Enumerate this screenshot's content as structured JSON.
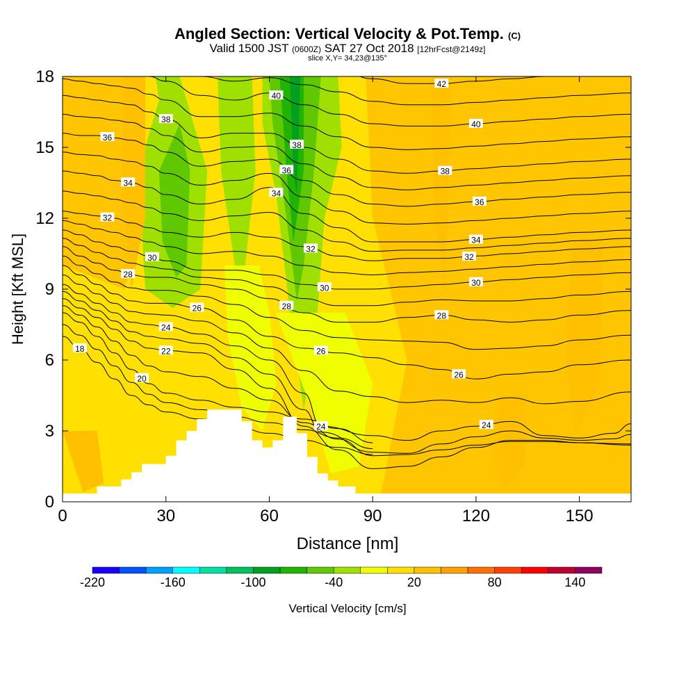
{
  "header": {
    "title": "Angled Section: Vertical Velocity & Pot.Temp.",
    "title_units": "(C)",
    "valid_prefix": "Valid 1500 JST",
    "valid_utc": "(0600Z)",
    "valid_date": "SAT 27 Oct 2018",
    "forecast": "[12hrFcst@2149z]",
    "slice": "slice X,Y= 34,23@135°"
  },
  "chart_data": {
    "type": "heatmap",
    "xlabel": "Distance [nm]",
    "ylabel": "Height [Kft MSL]",
    "xlim": [
      0,
      165
    ],
    "ylim": [
      0,
      18
    ],
    "x_ticks": [
      "0",
      "30",
      "60",
      "90",
      "120",
      "150"
    ],
    "y_ticks": [
      "0",
      "3",
      "6",
      "9",
      "12",
      "15",
      "18"
    ],
    "terrain": {
      "x": [
        0,
        10,
        10,
        17,
        17,
        20,
        20,
        23,
        23,
        30,
        30,
        33,
        33,
        36,
        36,
        39,
        39,
        42,
        42,
        52,
        52,
        55,
        55,
        58,
        58,
        61,
        61,
        64,
        64,
        68,
        68,
        71,
        71,
        74,
        74,
        77,
        77,
        80,
        80,
        85,
        85,
        90,
        90,
        165
      ],
      "h": [
        0.35,
        0.35,
        0.65,
        0.65,
        0.95,
        0.95,
        1.25,
        1.25,
        1.6,
        1.6,
        1.95,
        1.95,
        2.6,
        2.6,
        3.0,
        3.0,
        3.5,
        3.5,
        3.9,
        3.9,
        3.4,
        3.4,
        2.6,
        2.6,
        2.3,
        2.3,
        2.6,
        2.6,
        3.6,
        3.6,
        2.9,
        2.9,
        1.9,
        1.9,
        1.2,
        1.2,
        0.9,
        0.9,
        0.65,
        0.65,
        0.35,
        0.35,
        0.35,
        0.35
      ]
    },
    "velocity_regions": [
      {
        "value": -40,
        "x": [
          27,
          34,
          42,
          40,
          32,
          24,
          22,
          28
        ],
        "h": [
          18,
          18,
          14,
          9,
          8.2,
          9,
          14,
          17
        ]
      },
      {
        "value": -60,
        "x": [
          34,
          37,
          36,
          33,
          29,
          28
        ],
        "h": [
          16,
          14,
          10,
          9.5,
          11,
          14
        ]
      },
      {
        "value": -40,
        "x": [
          45,
          55,
          56,
          53,
          50,
          46
        ],
        "h": [
          18,
          18,
          14,
          10,
          10,
          14
        ]
      },
      {
        "value": -40,
        "x": [
          58,
          80,
          81,
          76,
          74,
          72,
          70,
          66,
          62,
          58
        ],
        "h": [
          18,
          18,
          15,
          12,
          8,
          5.5,
          3.9,
          8,
          13,
          16
        ]
      },
      {
        "value": -60,
        "x": [
          60,
          75,
          73,
          70,
          68,
          65,
          61
        ],
        "h": [
          18,
          18,
          14,
          10,
          8.5,
          12,
          16
        ]
      },
      {
        "value": -80,
        "x": [
          63,
          70,
          70,
          67,
          65
        ],
        "h": [
          18,
          18,
          14,
          11,
          14
        ]
      },
      {
        "value": -100,
        "x": [
          66,
          69,
          68,
          67
        ],
        "h": [
          18,
          18,
          13,
          14
        ]
      },
      {
        "value": -20,
        "x": [
          47,
          57,
          60,
          62,
          58,
          52,
          48
        ],
        "h": [
          10,
          10,
          8,
          5,
          3,
          4,
          7
        ]
      },
      {
        "value": -20,
        "x": [
          62,
          82,
          90,
          86,
          78,
          72
        ],
        "h": [
          8,
          8,
          5,
          1.5,
          1.2,
          4
        ]
      },
      {
        "value": 20,
        "x": [
          18,
          24,
          24,
          20,
          17
        ],
        "h": [
          18,
          18,
          12,
          9,
          13
        ]
      },
      {
        "value": 20,
        "x": [
          107,
          113,
          111,
          108
        ],
        "h": [
          18,
          18,
          9,
          12
        ]
      },
      {
        "value": 20,
        "x": [
          148,
          157,
          156,
          149,
          146
        ],
        "h": [
          11,
          11,
          5,
          2.8,
          6
        ]
      },
      {
        "value": 20,
        "x": [
          126,
          135,
          134,
          128,
          125
        ],
        "h": [
          4.5,
          4.5,
          1.5,
          0.4,
          2
        ]
      },
      {
        "value": 20,
        "x": [
          0,
          10,
          12,
          6
        ],
        "h": [
          3,
          3,
          0.8,
          0.4
        ]
      }
    ],
    "contours": [
      {
        "level": 18,
        "h": [
          7.0,
          6.5,
          5.9,
          5.2,
          4.5,
          4.1,
          3.8,
          3.5,
          3.2,
          2.9,
          2.6,
          2.3,
          2.0
        ],
        "x": [
          0,
          5,
          10,
          15,
          20,
          25,
          30,
          40,
          50,
          60,
          70,
          80,
          90
        ],
        "labels": [
          [
            5,
            "18"
          ]
        ]
      },
      {
        "level": 20,
        "h": [
          8.0,
          7.6,
          7.0,
          6.3,
          5.6,
          5.0,
          4.6,
          4.3,
          4.0,
          3.8,
          3.5,
          3.1,
          2.5
        ],
        "x": [
          0,
          5,
          10,
          15,
          20,
          25,
          30,
          40,
          50,
          60,
          70,
          80,
          90
        ],
        "labels": [
          [
            23,
            "20"
          ]
        ]
      },
      {
        "level": 22,
        "h": [
          8.6,
          8.2,
          7.8,
          7.3,
          6.8,
          6.5,
          6.4,
          6.3,
          5.6,
          4.8,
          3.2,
          2.2,
          1.4,
          1.5,
          1.9,
          2.3,
          2.6,
          2.6,
          2.5,
          2.4
        ],
        "x": [
          0,
          5,
          10,
          15,
          20,
          25,
          30,
          40,
          50,
          60,
          70,
          80,
          90,
          100,
          110,
          120,
          130,
          140,
          150,
          165
        ],
        "labels": [
          [
            30,
            "22"
          ]
        ]
      },
      {
        "level": 24,
        "h": [
          9.2,
          8.8,
          8.4,
          8.0,
          7.6,
          7.5,
          7.4,
          7.1,
          6.6,
          6.0,
          4.6,
          3.2,
          2.8,
          2.6,
          3.0,
          3.2,
          3.4,
          2.8,
          2.7,
          2.9,
          3.3
        ],
        "x": [
          0,
          5,
          10,
          15,
          20,
          25,
          30,
          40,
          50,
          60,
          70,
          75,
          90,
          100,
          110,
          120,
          130,
          140,
          150,
          160,
          165
        ],
        "labels": [
          [
            30,
            "24"
          ],
          [
            75,
            "24"
          ],
          [
            123,
            "24"
          ]
        ]
      },
      {
        "level": 26,
        "h": [
          10.0,
          9.6,
          9.2,
          8.8,
          8.5,
          8.4,
          8.4,
          8.2,
          7.7,
          7.0,
          6.5,
          6.3,
          6.1,
          5.8,
          5.6,
          5.2,
          5.4,
          5.5,
          5.8,
          6.0
        ],
        "x": [
          0,
          5,
          10,
          15,
          20,
          25,
          30,
          40,
          50,
          60,
          70,
          80,
          90,
          100,
          110,
          120,
          130,
          140,
          150,
          165
        ],
        "labels": [
          [
            39,
            "26"
          ],
          [
            75,
            "26"
          ],
          [
            115,
            "26"
          ]
        ]
      },
      {
        "level": 28,
        "h": [
          10.8,
          10.4,
          10.1,
          9.8,
          9.6,
          9.5,
          9.5,
          9.2,
          9.0,
          8.6,
          8.0,
          7.6,
          7.6,
          7.8,
          7.9,
          7.7,
          7.6,
          7.7,
          7.9,
          8.1
        ],
        "x": [
          0,
          5,
          10,
          15,
          20,
          25,
          30,
          40,
          50,
          60,
          70,
          80,
          90,
          100,
          110,
          120,
          130,
          140,
          150,
          165
        ],
        "labels": [
          [
            19,
            "28"
          ],
          [
            65,
            "28"
          ],
          [
            110,
            "28"
          ]
        ]
      },
      {
        "level": 30,
        "h": [
          11.5,
          11.3,
          11.0,
          10.8,
          10.6,
          10.4,
          10.2,
          9.8,
          9.8,
          9.6,
          9.2,
          9.0,
          9.0,
          9.1,
          9.2,
          9.3,
          9.4,
          9.5,
          9.6,
          9.7
        ],
        "x": [
          0,
          5,
          10,
          15,
          20,
          25,
          30,
          40,
          50,
          60,
          70,
          80,
          90,
          100,
          110,
          120,
          130,
          140,
          150,
          165
        ],
        "labels": [
          [
            26,
            "30"
          ],
          [
            76,
            "30"
          ],
          [
            120,
            "30"
          ]
        ]
      },
      {
        "level": 32,
        "h": [
          12.3,
          12.2,
          12.1,
          12.0,
          11.8,
          11.6,
          11.4,
          11.2,
          11.4,
          11.2,
          10.8,
          10.4,
          10.2,
          10.3,
          10.3,
          10.4,
          10.5,
          10.6,
          10.7,
          10.8
        ],
        "x": [
          0,
          5,
          10,
          15,
          20,
          25,
          30,
          40,
          50,
          60,
          70,
          80,
          90,
          100,
          110,
          120,
          130,
          140,
          150,
          165
        ],
        "labels": [
          [
            13,
            "32"
          ],
          [
            72,
            "32"
          ],
          [
            118,
            "32"
          ]
        ]
      },
      {
        "level": 34,
        "h": [
          14.0,
          13.9,
          13.8,
          13.6,
          13.5,
          13.3,
          13.0,
          12.6,
          12.8,
          13.3,
          12.2,
          11.6,
          11.0,
          11.0,
          11.0,
          11.1,
          11.2,
          11.3,
          11.4,
          11.5
        ],
        "x": [
          0,
          5,
          10,
          15,
          20,
          25,
          30,
          40,
          50,
          60,
          70,
          80,
          90,
          100,
          110,
          120,
          130,
          140,
          150,
          165
        ],
        "labels": [
          [
            19,
            "34"
          ],
          [
            62,
            "34"
          ],
          [
            120,
            "34"
          ]
        ]
      },
      {
        "level": 36,
        "h": [
          15.6,
          15.5,
          15.5,
          15.4,
          15.3,
          15.1,
          14.8,
          14.2,
          14.4,
          14.5,
          13.6,
          13.0,
          12.6,
          12.5,
          12.6,
          12.7,
          12.8,
          12.9,
          13.0,
          13.1
        ],
        "x": [
          0,
          5,
          10,
          15,
          20,
          25,
          30,
          40,
          50,
          60,
          70,
          80,
          90,
          100,
          110,
          120,
          130,
          140,
          150,
          165
        ],
        "labels": [
          [
            13,
            "36"
          ],
          [
            65,
            "36"
          ],
          [
            121,
            "36"
          ]
        ]
      },
      {
        "level": 38,
        "h": [
          17.2,
          17.1,
          17.0,
          16.9,
          16.8,
          16.5,
          16.2,
          15.4,
          15.6,
          15.6,
          15.0,
          14.5,
          14.0,
          13.9,
          14.0,
          14.1,
          14.2,
          14.3,
          14.4,
          14.5
        ],
        "x": [
          0,
          5,
          10,
          15,
          20,
          25,
          30,
          40,
          50,
          60,
          70,
          80,
          90,
          100,
          110,
          120,
          130,
          140,
          150,
          165
        ],
        "labels": [
          [
            30,
            "38"
          ],
          [
            68,
            "38"
          ],
          [
            111,
            "38"
          ]
        ]
      },
      {
        "level": 40,
        "h": [
          18.6,
          18.5,
          18.4,
          18.3,
          18.2,
          18.0,
          17.8,
          17.2,
          17.0,
          17.3,
          16.8,
          16.4,
          16.0,
          15.9,
          15.9,
          16.0,
          16.1,
          16.2,
          16.3,
          16.4
        ],
        "x": [
          0,
          5,
          10,
          15,
          20,
          25,
          30,
          40,
          50,
          60,
          70,
          80,
          90,
          100,
          110,
          120,
          130,
          140,
          150,
          165
        ],
        "labels": [
          [
            62,
            "40"
          ],
          [
            120,
            "40"
          ]
        ]
      },
      {
        "level": 42,
        "h": [
          19.6,
          19.5,
          19.4,
          19.3,
          19.2,
          19.1,
          19.0,
          18.8,
          18.6,
          18.6,
          18.5,
          18.3,
          17.9,
          17.7,
          17.7,
          17.8,
          17.9,
          18.0,
          18.1,
          18.2
        ],
        "x": [
          0,
          5,
          10,
          15,
          20,
          25,
          30,
          40,
          50,
          60,
          70,
          80,
          90,
          100,
          110,
          120,
          130,
          140,
          150,
          165
        ],
        "labels": [
          [
            110,
            "42"
          ]
        ]
      }
    ],
    "colorbar": {
      "label": "Vertical Velocity [cm/s]",
      "tick_labels": [
        "-220",
        "-160",
        "-100",
        "-40",
        "20",
        "80",
        "140"
      ],
      "tick_values": [
        -220,
        -160,
        -100,
        -40,
        20,
        80,
        140
      ],
      "bins": [
        -220,
        -200,
        -180,
        -160,
        -140,
        -120,
        -100,
        -80,
        -60,
        -40,
        -20,
        0,
        20,
        40,
        60,
        80,
        100,
        120,
        140,
        160
      ],
      "colors": [
        "#1a00ff",
        "#0050ff",
        "#00a0ff",
        "#00ffff",
        "#00e0a0",
        "#00c060",
        "#00a020",
        "#20b400",
        "#60c800",
        "#a0e000",
        "#f0ff00",
        "#ffe000",
        "#ffc000",
        "#ffa000",
        "#ff7000",
        "#ff4000",
        "#ff0000",
        "#c00030",
        "#900060"
      ]
    },
    "background_color": "#ffe000",
    "background_tint": "#ffc000"
  }
}
